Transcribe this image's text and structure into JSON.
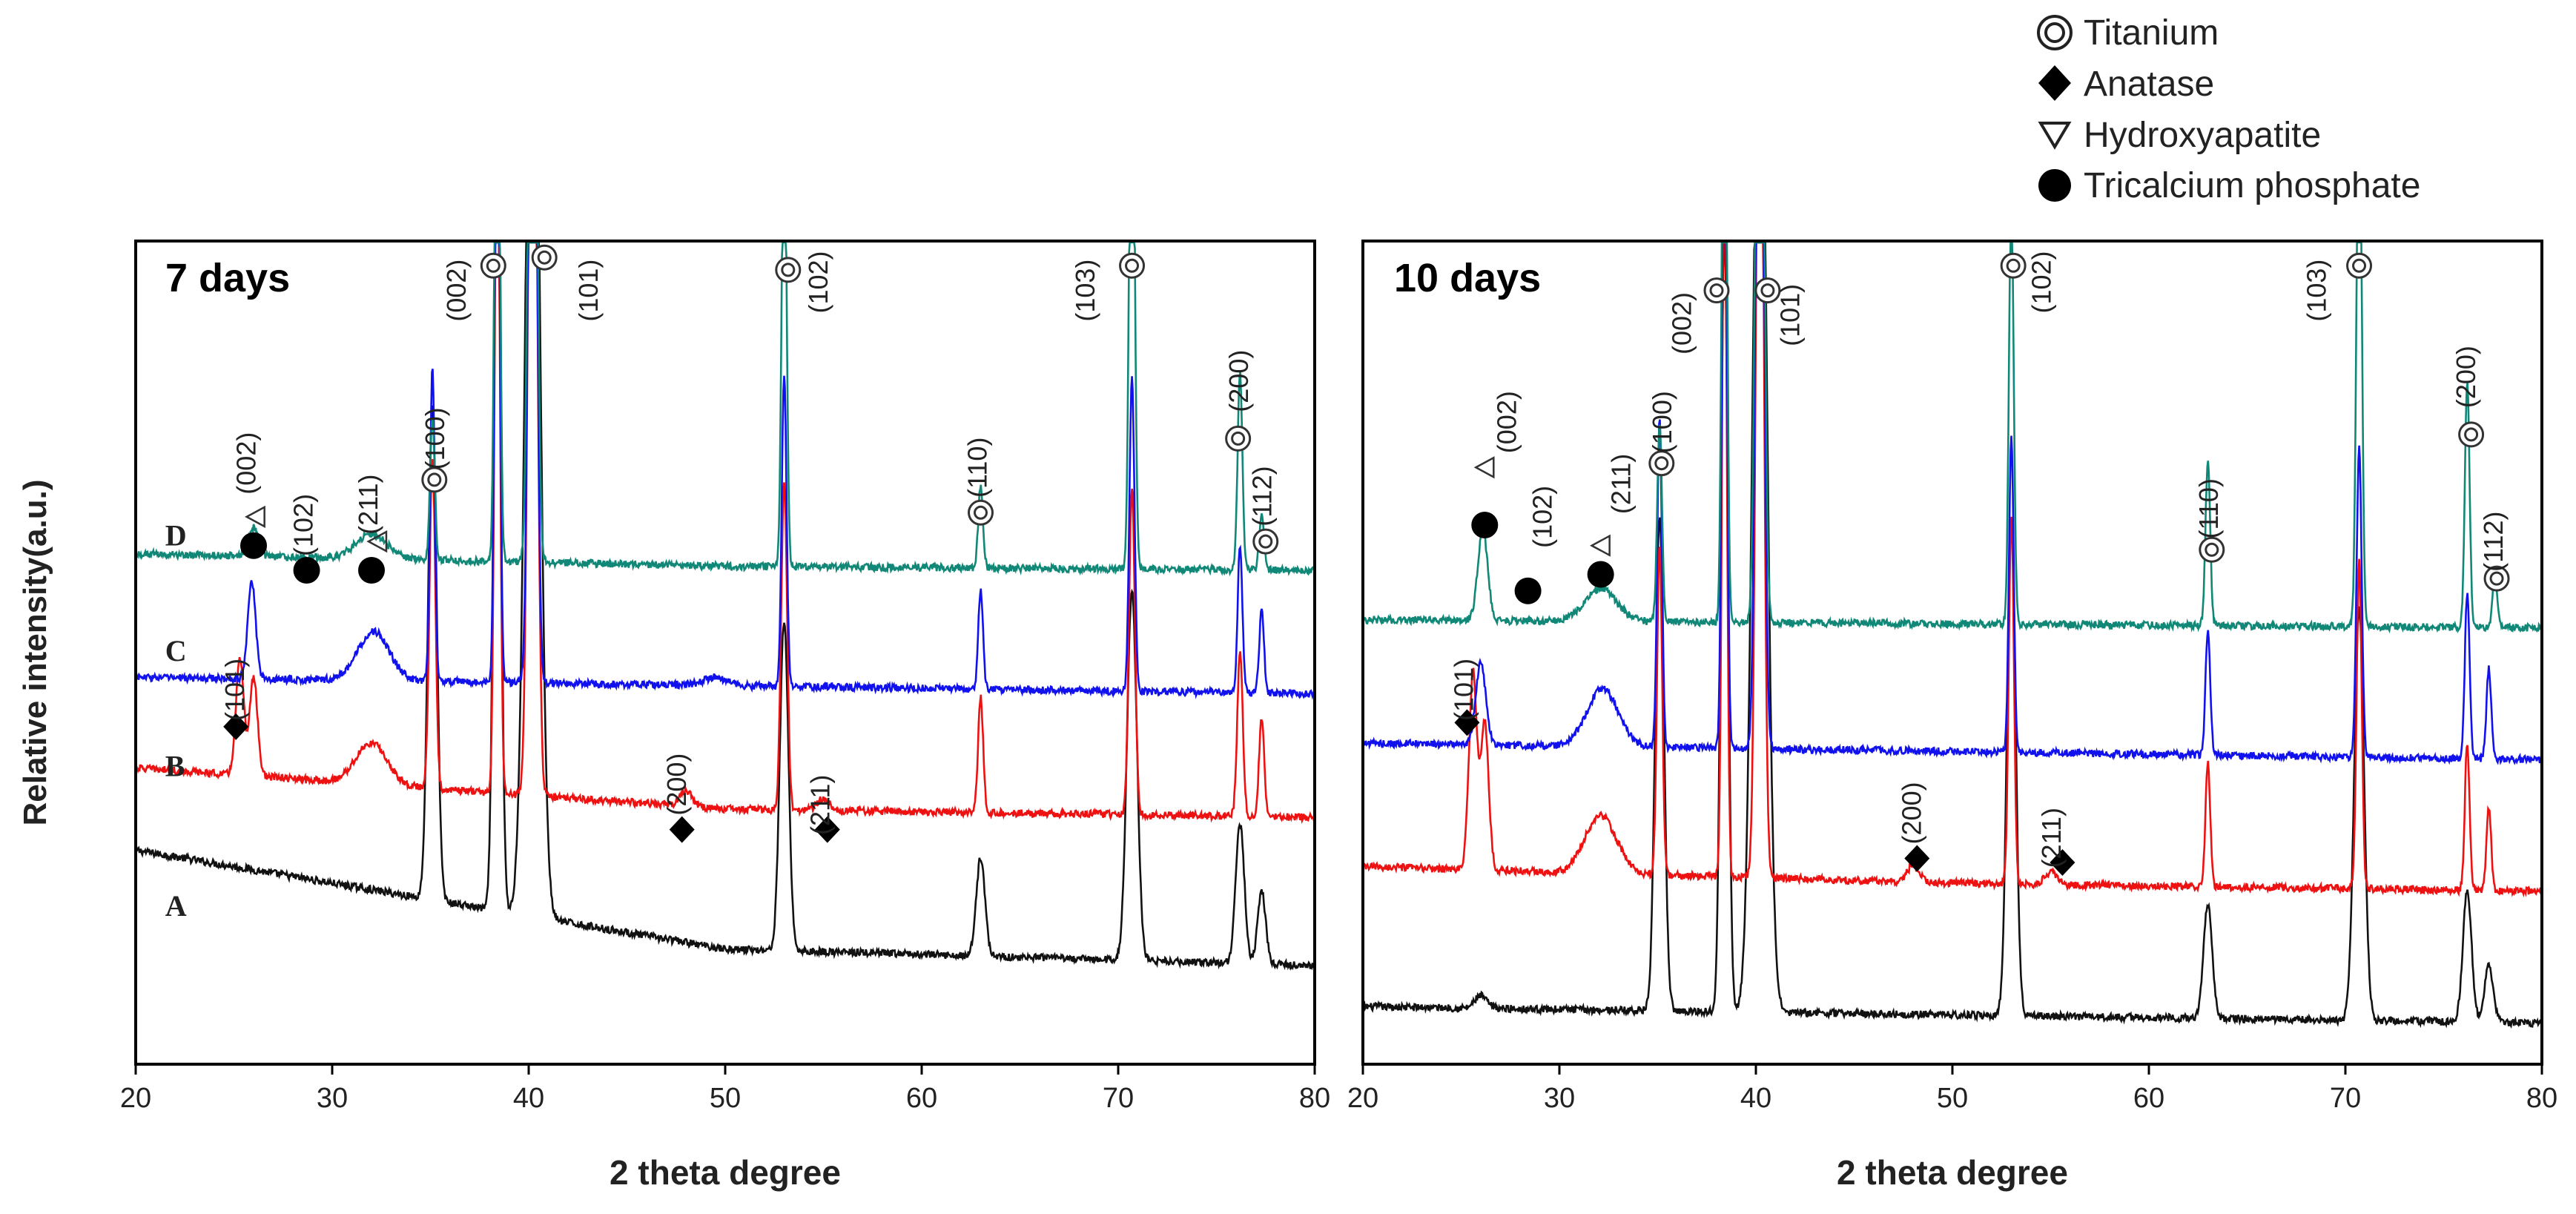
{
  "figure": {
    "ylabel": "Relative intensity(a.u.)",
    "legend": {
      "placement": "top-right",
      "items": [
        {
          "symbol": "double-circle",
          "label": "Titanium"
        },
        {
          "symbol": "diamond",
          "label": "Anatase"
        },
        {
          "symbol": "triangle",
          "label": "Hydroxyapatite"
        },
        {
          "symbol": "filled-circle",
          "label": "Tricalcium phosphate"
        }
      ]
    }
  },
  "chart_data": [
    {
      "type": "line",
      "title": "7 days",
      "xlabel": "2 theta degree",
      "ylabel": "Relative intensity(a.u.)",
      "xlim": [
        20,
        80
      ],
      "xticks": [
        20,
        30,
        40,
        50,
        60,
        70,
        80
      ],
      "xtick_labels": [
        "20",
        "30",
        "40",
        "50",
        "60",
        "70",
        "80"
      ],
      "ylim": [
        0,
        100
      ],
      "colors": {
        "A": "#111111",
        "B": "#ee1111",
        "C": "#1111ee",
        "D": "#118877"
      },
      "series": [
        {
          "name": "A",
          "offset": 12,
          "baseline": [
            [
              20,
              14
            ],
            [
              50,
              2
            ],
            [
              80,
              0
            ]
          ],
          "peaks": [
            [
              35.1,
              60,
              0.22
            ],
            [
              38.4,
              95,
              0.18
            ],
            [
              40.2,
              130,
              0.35
            ],
            [
              53.0,
              40,
              0.22
            ],
            [
              63.0,
              12,
              0.22
            ],
            [
              70.7,
              45,
              0.25
            ],
            [
              76.2,
              17,
              0.22
            ],
            [
              77.3,
              9,
              0.2
            ]
          ]
        },
        {
          "name": "B",
          "offset": 30,
          "baseline": [
            [
              20,
              6
            ],
            [
              50,
              1
            ],
            [
              80,
              0
            ]
          ],
          "peaks": [
            [
              25.3,
              14,
              0.2
            ],
            [
              26.0,
              12,
              0.2
            ],
            [
              32.0,
              5,
              0.8
            ],
            [
              35.1,
              40,
              0.15
            ],
            [
              38.4,
              90,
              0.13
            ],
            [
              40.2,
              130,
              0.2
            ],
            [
              48.0,
              2,
              0.3
            ],
            [
              53.0,
              40,
              0.15
            ],
            [
              55.0,
              1.5,
              0.3
            ],
            [
              63.0,
              14,
              0.13
            ],
            [
              70.7,
              40,
              0.15
            ],
            [
              76.2,
              20,
              0.14
            ],
            [
              77.3,
              12,
              0.13
            ]
          ]
        },
        {
          "name": "C",
          "offset": 45,
          "baseline": [
            [
              20,
              2
            ],
            [
              50,
              1
            ],
            [
              80,
              0
            ]
          ],
          "peaks": [
            [
              25.9,
              12,
              0.2
            ],
            [
              32.1,
              6,
              0.8
            ],
            [
              35.1,
              38,
              0.12
            ],
            [
              38.4,
              90,
              0.12
            ],
            [
              40.2,
              130,
              0.18
            ],
            [
              49.5,
              1,
              0.6
            ],
            [
              53.0,
              38,
              0.12
            ],
            [
              63.0,
              12,
              0.12
            ],
            [
              70.7,
              38,
              0.13
            ],
            [
              76.2,
              18,
              0.12
            ],
            [
              77.3,
              10,
              0.12
            ]
          ]
        },
        {
          "name": "D",
          "offset": 60,
          "baseline": [
            [
              20,
              2
            ],
            [
              50,
              0.5
            ],
            [
              80,
              0
            ]
          ],
          "peaks": [
            [
              26.0,
              3.5,
              0.25
            ],
            [
              32.0,
              3,
              0.8
            ],
            [
              35.1,
              17,
              0.12
            ],
            [
              38.4,
              90,
              0.12
            ],
            [
              40.2,
              130,
              0.18
            ],
            [
              53.0,
              58,
              0.12
            ],
            [
              63.0,
              10,
              0.12
            ],
            [
              70.7,
              75,
              0.13
            ],
            [
              76.2,
              24,
              0.12
            ],
            [
              77.3,
              7,
              0.12
            ]
          ]
        }
      ],
      "curve_labels": [
        {
          "name": "A",
          "x": 21.5,
          "y": 18
        },
        {
          "name": "B",
          "x": 21.5,
          "y": 35
        },
        {
          "name": "C",
          "x": 21.5,
          "y": 49
        },
        {
          "name": "D",
          "x": 21.5,
          "y": 63
        }
      ],
      "annotations": [
        {
          "symbol": "diamond",
          "x": 25.1,
          "y": 41,
          "label": "(101)",
          "lx": 25.5,
          "ly": 45.5
        },
        {
          "symbol": "filled-circle",
          "x": 26.0,
          "y": 63,
          "label": "(002)",
          "lx": 26.1,
          "ly": 73,
          "tri": {
            "x": 26.1,
            "y": 66.5
          }
        },
        {
          "symbol": "filled-circle",
          "x": 28.7,
          "y": 60,
          "label": "(102)",
          "lx": 29.0,
          "ly": 65.5
        },
        {
          "symbol": "filled-circle",
          "x": 32.0,
          "y": 60,
          "label": "(211)",
          "lx": 32.3,
          "ly": 68,
          "tri": {
            "x": 32.3,
            "y": 63.5
          }
        },
        {
          "symbol": "double-circle",
          "x": 35.2,
          "y": 71,
          "label": "(100)",
          "lx": 35.7,
          "ly": 76
        },
        {
          "symbol": "double-circle",
          "x": 38.2,
          "y": 97,
          "label": "(002)",
          "lx": 36.8,
          "ly": 94
        },
        {
          "symbol": "double-circle",
          "x": 40.8,
          "y": 98,
          "label": "(101)",
          "lx": 43.5,
          "ly": 94
        },
        {
          "symbol": "diamond",
          "x": 47.8,
          "y": 28.5,
          "label": "(200)",
          "lx": 48.0,
          "ly": 34
        },
        {
          "symbol": "diamond",
          "x": 55.2,
          "y": 28.5,
          "label": "(211)",
          "lx": 55.3,
          "ly": 31.5
        },
        {
          "symbol": "double-circle",
          "x": 53.2,
          "y": 96.5,
          "label": "(102)",
          "lx": 55.2,
          "ly": 95
        },
        {
          "symbol": "double-circle",
          "x": 63.0,
          "y": 67,
          "label": "(110)",
          "lx": 63.3,
          "ly": 72.5
        },
        {
          "symbol": "double-circle",
          "x": 70.7,
          "y": 97,
          "label": "(103)",
          "lx": 68.8,
          "ly": 94
        },
        {
          "symbol": "double-circle",
          "x": 76.1,
          "y": 76,
          "label": "(200)",
          "lx": 76.6,
          "ly": 83
        },
        {
          "symbol": "double-circle",
          "x": 77.5,
          "y": 63.5,
          "label": "(112)",
          "lx": 77.8,
          "ly": 69
        }
      ]
    },
    {
      "type": "line",
      "title": "10 days",
      "xlabel": "2 theta degree",
      "ylabel": "Relative intensity(a.u.)",
      "xlim": [
        20,
        80
      ],
      "xticks": [
        20,
        30,
        40,
        50,
        60,
        70,
        80
      ],
      "xtick_labels": [
        "20",
        "30",
        "40",
        "50",
        "60",
        "70",
        "80"
      ],
      "ylim": [
        0,
        100
      ],
      "colors": {
        "A": "#111111",
        "B": "#ee1111",
        "C": "#1111ee",
        "D": "#118877"
      },
      "series": [
        {
          "name": "A",
          "offset": 5,
          "baseline": [
            [
              20,
              2
            ],
            [
              50,
              1
            ],
            [
              80,
              0
            ]
          ],
          "peaks": [
            [
              26.0,
              1.5,
              0.3
            ],
            [
              35.1,
              60,
              0.22
            ],
            [
              38.4,
              95,
              0.18
            ],
            [
              40.2,
              130,
              0.35
            ],
            [
              53.0,
              60,
              0.22
            ],
            [
              63.0,
              14,
              0.22
            ],
            [
              70.7,
              50,
              0.25
            ],
            [
              76.2,
              16,
              0.22
            ],
            [
              77.3,
              7,
              0.22
            ]
          ]
        },
        {
          "name": "B",
          "offset": 21,
          "baseline": [
            [
              20,
              3
            ],
            [
              50,
              1
            ],
            [
              80,
              0
            ]
          ],
          "peaks": [
            [
              25.6,
              24,
              0.2
            ],
            [
              26.2,
              18,
              0.2
            ],
            [
              32.1,
              7,
              0.8
            ],
            [
              35.1,
              40,
              0.13
            ],
            [
              38.4,
              90,
              0.12
            ],
            [
              40.2,
              130,
              0.18
            ],
            [
              48.0,
              2,
              0.3
            ],
            [
              53.0,
              45,
              0.13
            ],
            [
              55.0,
              1.5,
              0.3
            ],
            [
              63.0,
              15,
              0.12
            ],
            [
              70.7,
              40,
              0.13
            ],
            [
              76.2,
              18,
              0.12
            ],
            [
              77.3,
              10,
              0.12
            ]
          ]
        },
        {
          "name": "C",
          "offset": 37,
          "baseline": [
            [
              20,
              2
            ],
            [
              50,
              1
            ],
            [
              80,
              0
            ]
          ],
          "peaks": [
            [
              26.0,
              10,
              0.25
            ],
            [
              32.2,
              7,
              0.8
            ],
            [
              35.1,
              40,
              0.12
            ],
            [
              38.4,
              90,
              0.12
            ],
            [
              40.2,
              130,
              0.18
            ],
            [
              53.0,
              38,
              0.12
            ],
            [
              63.0,
              15,
              0.12
            ],
            [
              70.7,
              38,
              0.13
            ],
            [
              76.2,
              20,
              0.12
            ],
            [
              77.3,
              11,
              0.12
            ]
          ]
        },
        {
          "name": "D",
          "offset": 53,
          "baseline": [
            [
              20,
              1
            ],
            [
              50,
              0.5
            ],
            [
              80,
              0
            ]
          ],
          "peaks": [
            [
              26.1,
              11,
              0.25
            ],
            [
              32.1,
              4,
              0.8
            ],
            [
              35.1,
              24,
              0.12
            ],
            [
              38.4,
              90,
              0.12
            ],
            [
              40.2,
              130,
              0.18
            ],
            [
              53.0,
              52,
              0.12
            ],
            [
              63.0,
              20,
              0.12
            ],
            [
              70.7,
              70,
              0.13
            ],
            [
              76.2,
              30,
              0.12
            ],
            [
              77.6,
              6,
              0.12
            ]
          ]
        }
      ],
      "curve_labels": [],
      "annotations": [
        {
          "symbol": "diamond",
          "x": 25.3,
          "y": 41.5,
          "label": "(101)",
          "lx": 25.6,
          "ly": 45.5
        },
        {
          "symbol": "filled-circle",
          "x": 26.2,
          "y": 65.5,
          "label": "(002)",
          "lx": 27.8,
          "ly": 78,
          "tri": {
            "x": 26.2,
            "y": 72.5
          }
        },
        {
          "symbol": "filled-circle",
          "x": 28.4,
          "y": 57.5,
          "label": "(102)",
          "lx": 29.6,
          "ly": 66.5
        },
        {
          "symbol": "filled-circle",
          "x": 32.1,
          "y": 59.5,
          "label": "(211)",
          "lx": 33.6,
          "ly": 70.5,
          "tri": {
            "x": 32.1,
            "y": 63
          }
        },
        {
          "symbol": "double-circle",
          "x": 35.2,
          "y": 73,
          "label": "(100)",
          "lx": 35.7,
          "ly": 78
        },
        {
          "symbol": "double-circle",
          "x": 38.0,
          "y": 94,
          "label": "(002)",
          "lx": 36.7,
          "ly": 90
        },
        {
          "symbol": "double-circle",
          "x": 40.6,
          "y": 94,
          "label": "(101)",
          "lx": 42.2,
          "ly": 91
        },
        {
          "symbol": "diamond",
          "x": 48.2,
          "y": 25,
          "label": "(200)",
          "lx": 48.4,
          "ly": 30.5
        },
        {
          "symbol": "diamond",
          "x": 55.6,
          "y": 24.5,
          "label": "(211)",
          "lx": 55.5,
          "ly": 27.5
        },
        {
          "symbol": "double-circle",
          "x": 53.1,
          "y": 97,
          "label": "(102)",
          "lx": 55.0,
          "ly": 95
        },
        {
          "symbol": "double-circle",
          "x": 63.2,
          "y": 62.5,
          "label": "(110)",
          "lx": 63.5,
          "ly": 67.5
        },
        {
          "symbol": "double-circle",
          "x": 70.7,
          "y": 97,
          "label": "(103)",
          "lx": 69.0,
          "ly": 94
        },
        {
          "symbol": "double-circle",
          "x": 76.4,
          "y": 76.5,
          "label": "(200)",
          "lx": 76.6,
          "ly": 83.5
        },
        {
          "symbol": "double-circle",
          "x": 77.7,
          "y": 59,
          "label": "(112)",
          "lx": 78.0,
          "ly": 63.5
        }
      ]
    }
  ]
}
